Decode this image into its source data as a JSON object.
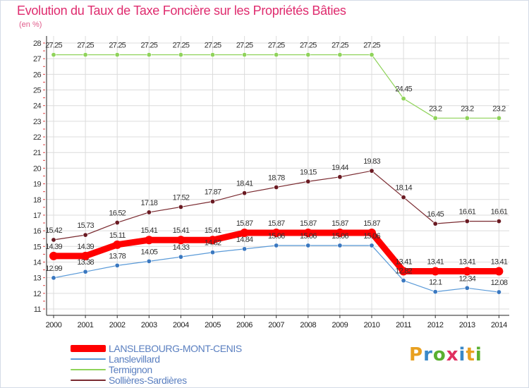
{
  "title": "Evolution du Taux de Taxe Foncière sur les Propriétés Bâties",
  "subtitle": "(en %)",
  "logo": {
    "text": "Proxiti",
    "letter_colors": [
      "#e8a020",
      "#3a88c8",
      "#5ab030",
      "#e03060",
      "#3a88c8",
      "#e8a020",
      "#5ab030"
    ]
  },
  "chart_data": {
    "type": "line",
    "title": "Evolution du Taux de Taxe Foncière sur les Propriétés Bâties",
    "ylabel": "(en %)",
    "xlabel": "",
    "categories": [
      "2000",
      "2001",
      "2002",
      "2003",
      "2004",
      "2005",
      "2006",
      "2007",
      "2008",
      "2009",
      "2010",
      "2011",
      "2012",
      "2013",
      "2014"
    ],
    "yticks": [
      11,
      12,
      13,
      14,
      15,
      16,
      17,
      18,
      19,
      20,
      21,
      22,
      23,
      24,
      25,
      26,
      27,
      28
    ],
    "ylim": [
      11,
      28
    ],
    "grid": true,
    "legend_position": "bottom-left",
    "series": [
      {
        "name": "Termignon",
        "color": "#8fd35a",
        "marker_color": "#8fd35a",
        "width": "thin",
        "values": [
          27.25,
          27.25,
          27.25,
          27.25,
          27.25,
          27.25,
          27.25,
          27.25,
          27.25,
          27.25,
          27.25,
          24.45,
          23.2,
          23.2,
          23.2
        ],
        "labels": [
          "27.25",
          "27.25",
          "27.25",
          "27.25",
          "27.25",
          "27.25",
          "27.25",
          "27.25",
          "27.25",
          "27.25",
          "27.25",
          "24.45",
          "23.2",
          "23.2",
          "23.2"
        ]
      },
      {
        "name": "Sollières-Sardières",
        "color": "#7a2a30",
        "marker_color": "#6a1a22",
        "width": "thin",
        "values": [
          15.42,
          15.73,
          16.52,
          17.18,
          17.52,
          17.87,
          18.41,
          18.78,
          19.15,
          19.44,
          19.83,
          18.14,
          16.45,
          16.61,
          16.61
        ],
        "labels": [
          "15.42",
          "15.73",
          "16.52",
          "17.18",
          "17.52",
          "17.87",
          "18.41",
          "18.78",
          "19.15",
          "19.44",
          "19.83",
          "18.14",
          "16.45",
          "16.61",
          "16.61"
        ]
      },
      {
        "name": "Lanslevillard",
        "color": "#5a9ad8",
        "marker_color": "#3a78c0",
        "width": "thin",
        "values": [
          12.99,
          13.38,
          13.78,
          14.05,
          14.33,
          14.62,
          14.84,
          15.06,
          15.06,
          15.06,
          15.06,
          12.82,
          12.1,
          12.34,
          12.08
        ],
        "labels": [
          "12.99",
          "13.38",
          "13.78",
          "14.05",
          "14.33",
          "14.62",
          "14.84",
          "15.06",
          "15.06",
          "15.06",
          "15.06",
          "12.82",
          "12.1",
          "12.34",
          "12.08"
        ]
      },
      {
        "name": "LANSLEBOURG-MONT-CENIS",
        "color": "#ff0000",
        "marker_color": "#ff0000",
        "width": "thick",
        "values": [
          14.39,
          14.39,
          15.11,
          15.41,
          15.41,
          15.41,
          15.87,
          15.87,
          15.87,
          15.87,
          15.87,
          13.41,
          13.41,
          13.41,
          13.41
        ],
        "labels": [
          "14.39",
          "14.39",
          "15.11",
          "15.41",
          "15.41",
          "15.41",
          "15.87",
          "15.87",
          "15.87",
          "15.87",
          "15.87",
          "13.41",
          "13.41",
          "13.41",
          "13.41"
        ]
      }
    ]
  },
  "legend": [
    {
      "name": "LANSLEBOURG-MONT-CENIS",
      "color": "#ff0000",
      "thickness": "thick"
    },
    {
      "name": "Lanslevillard",
      "color": "#5a9ad8",
      "thickness": "thin"
    },
    {
      "name": "Termignon",
      "color": "#8fd35a",
      "thickness": "thin"
    },
    {
      "name": "Sollières-Sardières",
      "color": "#7a2a30",
      "thickness": "thin"
    }
  ]
}
